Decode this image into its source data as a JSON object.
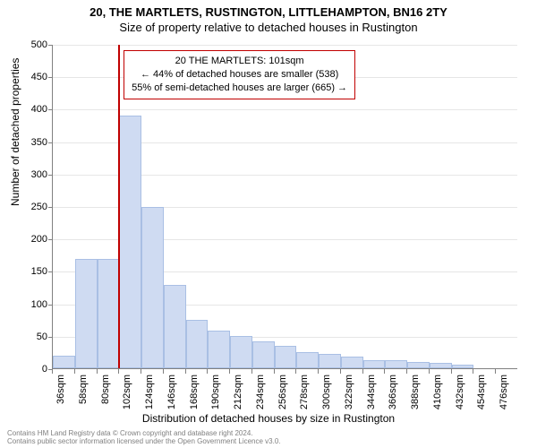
{
  "titles": {
    "line1": "20, THE MARTLETS, RUSTINGTON, LITTLEHAMPTON, BN16 2TY",
    "line2": "Size of property relative to detached houses in Rustington"
  },
  "chart": {
    "type": "histogram",
    "ylabel": "Number of detached properties",
    "xlabel": "Distribution of detached houses by size in Rustington",
    "ylim": [
      0,
      500
    ],
    "ytick_step": 50,
    "x_start": 36,
    "x_step": 22,
    "x_count": 21,
    "x_unit": "sqm",
    "bar_color": "#cfdbf2",
    "bar_border_color": "#a9bfe4",
    "grid_color": "#e6e6e6",
    "axis_color": "#808080",
    "background_color": "#ffffff",
    "marker_value": 101,
    "marker_color": "#c00000",
    "values": [
      20,
      168,
      168,
      390,
      248,
      128,
      75,
      58,
      50,
      42,
      35,
      25,
      22,
      18,
      12,
      12,
      10,
      8,
      6,
      0,
      0
    ],
    "annotation": {
      "line1": "20 THE MARTLETS: 101sqm",
      "line2": "← 44% of detached houses are smaller (538)",
      "line3": "55% of semi-detached houses are larger (665) →"
    }
  },
  "footer": {
    "line1": "Contains HM Land Registry data © Crown copyright and database right 2024.",
    "line2": "Contains public sector information licensed under the Open Government Licence v3.0."
  }
}
